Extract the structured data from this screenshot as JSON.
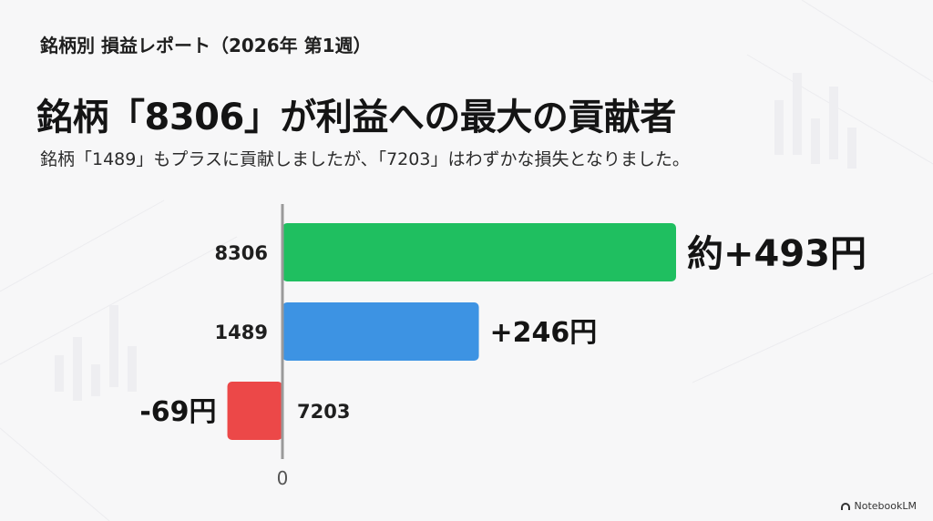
{
  "header": {
    "slide_label": "銘柄別 損益レポート（2026年 第1週）",
    "headline": "銘柄「8306」が利益への最大の貢献者",
    "subhead": "銘柄「1489」もプラスに貢献しましたが、「7203」はわずかな損失となりました。"
  },
  "brand": {
    "logo_text": "NotebookLM"
  },
  "colors": {
    "positive_large": "#1fbf60",
    "positive": "#3d93e3",
    "negative": "#ec4848",
    "axis": "#9a9a9a"
  },
  "chart_data": {
    "type": "bar",
    "orientation": "horizontal",
    "title": "",
    "xlabel": "",
    "ylabel": "",
    "categories": [
      "8306",
      "1489",
      "7203"
    ],
    "values": [
      493,
      246,
      -69
    ],
    "data_labels": [
      "約+493円",
      "+246円",
      "-69円"
    ],
    "colors": [
      "#1fbf60",
      "#3d93e3",
      "#ec4848"
    ],
    "axis_tick_label": "0",
    "xlim": [
      -85,
      525
    ],
    "grid": false
  }
}
